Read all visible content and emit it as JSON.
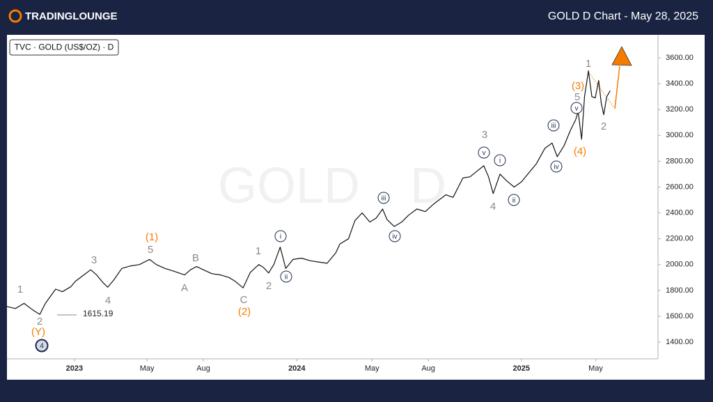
{
  "brand": "TRADINGLOUNGE",
  "chart_data": {
    "type": "line",
    "title": "GOLD D Chart - May 28, 2025",
    "symbol": "TVC · GOLD (US$/OZ) · D",
    "watermark": [
      "GOLD",
      "D"
    ],
    "color": "#111111",
    "x": [
      0,
      2,
      4,
      6,
      7.7,
      9,
      11.4,
      13,
      15,
      16,
      18,
      19.6,
      21,
      22.5,
      23.6,
      25,
      26.9,
      29,
      31,
      33.4,
      35,
      37,
      39,
      41.6,
      43,
      44.4,
      46,
      48,
      50,
      52,
      53.5,
      55.3,
      57,
      59,
      60,
      61.3,
      62.5,
      64,
      65.3,
      67,
      69,
      71,
      73,
      75,
      77,
      78,
      80,
      81.5,
      83.2,
      85,
      86.5,
      88,
      89,
      90.7,
      92.5,
      94,
      96,
      98,
      100,
      102.8,
      104.5,
      106.8,
      108.5,
      110,
      111.7,
      112.8,
      113.9,
      115.5,
      117,
      118.8,
      120.5,
      122,
      124,
      126,
      127.7,
      128.9,
      130.5,
      132,
      133.2,
      133.8,
      134.6,
      135.3,
      136.2,
      137,
      137.8,
      138.6,
      139.2,
      139.8,
      140.5,
      141.3
    ],
    "values": [
      1675,
      1660,
      1700,
      1650,
      1615,
      1700,
      1810,
      1790,
      1830,
      1870,
      1920,
      1960,
      1920,
      1860,
      1825,
      1880,
      1970,
      1990,
      2000,
      2040,
      2000,
      1970,
      1950,
      1920,
      1960,
      1985,
      1960,
      1930,
      1920,
      1900,
      1870,
      1820,
      1940,
      2000,
      1980,
      1935,
      2000,
      2135,
      1970,
      2040,
      2050,
      2030,
      2020,
      2010,
      2090,
      2160,
      2200,
      2340,
      2400,
      2330,
      2360,
      2430,
      2350,
      2295,
      2330,
      2380,
      2430,
      2410,
      2470,
      2540,
      2520,
      2670,
      2680,
      2720,
      2765,
      2680,
      2550,
      2700,
      2650,
      2600,
      2640,
      2700,
      2780,
      2900,
      2940,
      2835,
      2920,
      3040,
      3120,
      3185,
      2970,
      3300,
      3500,
      3300,
      3290,
      3425,
      3250,
      3160,
      3300,
      3345
    ],
    "xlim": [
      0,
      152.5
    ],
    "ylim": [
      1271,
      3778
    ],
    "xticks": [
      {
        "value": 15.8,
        "label": "2023"
      },
      {
        "value": 32.8,
        "label": "May"
      },
      {
        "value": 46,
        "label": "Aug"
      },
      {
        "value": 67.9,
        "label": "2024"
      },
      {
        "value": 85.5,
        "label": "May"
      },
      {
        "value": 98.7,
        "label": "Aug"
      },
      {
        "value": 120.5,
        "label": "2025"
      },
      {
        "value": 137.9,
        "label": "May"
      }
    ],
    "yticks": [
      {
        "value": 1400,
        "label": "1400.00"
      },
      {
        "value": 1600,
        "label": "1600.00"
      },
      {
        "value": 1800,
        "label": "1800.00"
      },
      {
        "value": 2000,
        "label": "2000.00"
      },
      {
        "value": 2200,
        "label": "2200.00"
      },
      {
        "value": 2400,
        "label": "2400.00"
      },
      {
        "value": 2600,
        "label": "2600.00"
      },
      {
        "value": 2800,
        "label": "2800.00"
      },
      {
        "value": 3000,
        "label": "3000.00"
      },
      {
        "value": 3200,
        "label": "3200.00"
      },
      {
        "value": 3400,
        "label": "3400.00"
      },
      {
        "value": 3600,
        "label": "3600.00"
      }
    ],
    "low_label": 1615.19,
    "annotations": [
      {
        "text": "1",
        "color": "#8a8a8a",
        "style": "plain"
      },
      {
        "text": "2",
        "color": "#8a8a8a",
        "style": "plain"
      },
      {
        "text": "(Y)",
        "color": "#f57c00",
        "style": "plain"
      },
      {
        "text": "4",
        "color": "#1c2a4d",
        "style": "filled"
      },
      {
        "text": "3",
        "color": "#8a8a8a",
        "style": "plain"
      },
      {
        "text": "4",
        "color": "#8a8a8a",
        "style": "plain"
      },
      {
        "text": "(1)",
        "color": "#f57c00",
        "style": "plain"
      },
      {
        "text": "5",
        "color": "#8a8a8a",
        "style": "plain"
      },
      {
        "text": "A",
        "color": "#8a8a8a",
        "style": "plain"
      },
      {
        "text": "B",
        "color": "#8a8a8a",
        "style": "plain"
      },
      {
        "text": "1",
        "color": "#8a8a8a",
        "style": "plain"
      },
      {
        "text": "2",
        "color": "#8a8a8a",
        "style": "plain"
      },
      {
        "text": "C",
        "color": "#8a8a8a",
        "style": "plain"
      },
      {
        "text": "(2)",
        "color": "#f57c00",
        "style": "plain"
      },
      {
        "text": "i",
        "color": "#1c2a4d",
        "style": "circled"
      },
      {
        "text": "ii",
        "color": "#1c2a4d",
        "style": "circled"
      },
      {
        "text": "iii",
        "color": "#1c2a4d",
        "style": "circled"
      },
      {
        "text": "iv",
        "color": "#1c2a4d",
        "style": "circled"
      },
      {
        "text": "3",
        "color": "#8a8a8a",
        "style": "plain"
      },
      {
        "text": "v",
        "color": "#1c2a4d",
        "style": "circled"
      },
      {
        "text": "i",
        "color": "#1c2a4d",
        "style": "circled"
      },
      {
        "text": "4",
        "color": "#8a8a8a",
        "style": "plain"
      },
      {
        "text": "ii",
        "color": "#1c2a4d",
        "style": "circled"
      },
      {
        "text": "iii",
        "color": "#1c2a4d",
        "style": "circled"
      },
      {
        "text": "iv",
        "color": "#1c2a4d",
        "style": "circled"
      },
      {
        "text": "5",
        "color": "#8a8a8a",
        "style": "plain"
      },
      {
        "text": "v",
        "color": "#1c2a4d",
        "style": "circled"
      },
      {
        "text": "(3)",
        "color": "#f57c00",
        "style": "plain"
      },
      {
        "text": "(4)",
        "color": "#f57c00",
        "style": "plain"
      },
      {
        "text": "1",
        "color": "#8a8a8a",
        "style": "plain"
      },
      {
        "text": "2",
        "color": "#8a8a8a",
        "style": "plain"
      }
    ]
  }
}
